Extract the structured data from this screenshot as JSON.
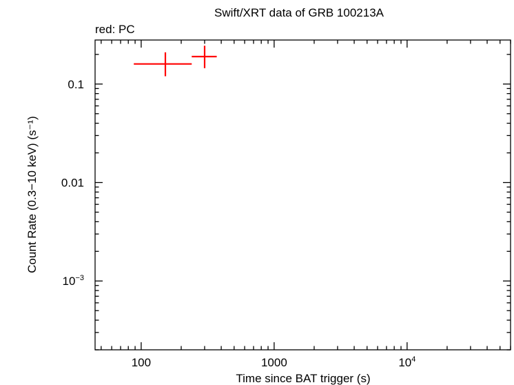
{
  "chart_data": {
    "type": "scatter",
    "title": "Swift/XRT data of GRB 100213A",
    "subtitle": "red: PC",
    "xlabel": "Time since BAT trigger (s)",
    "ylabel": "Count Rate (0.3−10 keV) (s⁻¹)",
    "x_scale": "log",
    "y_scale": "log",
    "xlim": [
      45,
      60000
    ],
    "ylim": [
      0.0002,
      0.28
    ],
    "x_ticks": [
      {
        "value": 100,
        "label": "100",
        "sup": ""
      },
      {
        "value": 1000,
        "label": "1000",
        "sup": ""
      },
      {
        "value": 10000,
        "label": "10",
        "sup": "4"
      }
    ],
    "y_ticks": [
      {
        "value": 0.1,
        "label": "0.1",
        "sup": ""
      },
      {
        "value": 0.01,
        "label": "0.01",
        "sup": ""
      },
      {
        "value": 0.001,
        "label": "10",
        "sup": "−3"
      }
    ],
    "grid": false,
    "series": [
      {
        "name": "PC",
        "color": "#ff0000",
        "points": [
          {
            "x": 152,
            "xlo": 88,
            "xhi": 240,
            "y": 0.16,
            "ylo": 0.12,
            "yhi": 0.21
          },
          {
            "x": 300,
            "xlo": 240,
            "xhi": 370,
            "y": 0.19,
            "ylo": 0.145,
            "yhi": 0.245
          }
        ]
      }
    ]
  }
}
